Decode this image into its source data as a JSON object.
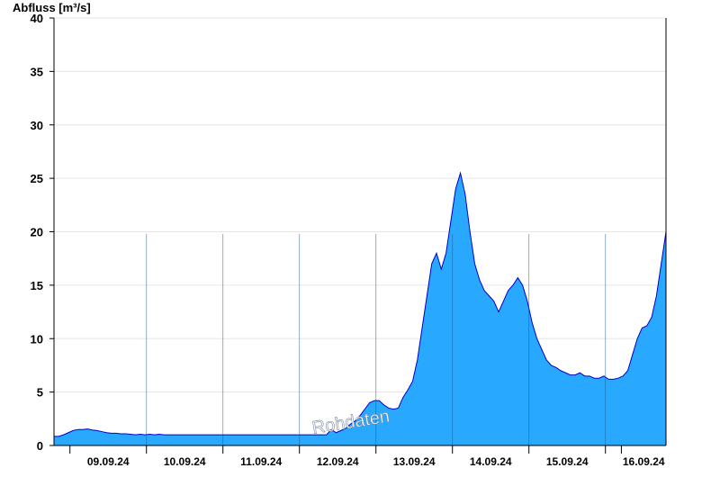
{
  "chart_data": {
    "type": "area",
    "title": "",
    "ylabel": "Abfluss [m³/s]",
    "xlabel": "",
    "ylim": [
      0,
      40
    ],
    "xlim": [
      "08.09.24 19:00",
      "16.09.24 19:00"
    ],
    "yticks": [
      0,
      5,
      10,
      15,
      20,
      25,
      30,
      35,
      40
    ],
    "xticks": [
      "09.09.24",
      "10.09.24",
      "11.09.24",
      "12.09.24",
      "13.09.24",
      "14.09.24",
      "15.09.24",
      "16.09.24"
    ],
    "watermark": "Rohdaten",
    "grid": "horizontal",
    "fill_color": "#29a8ff",
    "line_color": "#0000cc",
    "series": [
      {
        "x": [
          0,
          6,
          12,
          18,
          24,
          30,
          36,
          42,
          48,
          54,
          60,
          66,
          72,
          78,
          84,
          90,
          96,
          102,
          108,
          114,
          120,
          126,
          132,
          138,
          144,
          150,
          156,
          162,
          168,
          174,
          180,
          186,
          192,
          198,
          204,
          210,
          216,
          222,
          228,
          234,
          240,
          246,
          252,
          258,
          264,
          270,
          276,
          282,
          288,
          294,
          300,
          306,
          312,
          318,
          324,
          330,
          336,
          342,
          348,
          354,
          360,
          366,
          372,
          378,
          384,
          390,
          396,
          402,
          408,
          414,
          420,
          426,
          432,
          438,
          444,
          450,
          456,
          462,
          468,
          474,
          480,
          486,
          492,
          498,
          504,
          510,
          516,
          522,
          528,
          534,
          540,
          546,
          552,
          558,
          564,
          570,
          576,
          582,
          588,
          594,
          600,
          606,
          612,
          618,
          624,
          630,
          636,
          642,
          648,
          654,
          660,
          666,
          672,
          678,
          684,
          690,
          696,
          702,
          708,
          714,
          720,
          726,
          732,
          738,
          744,
          750,
          756,
          762,
          768
        ],
        "values": [
          0.85,
          0.85,
          1.0,
          1.2,
          1.4,
          1.5,
          1.5,
          1.55,
          1.45,
          1.4,
          1.3,
          1.2,
          1.15,
          1.15,
          1.1,
          1.1,
          1.05,
          1.0,
          1.05,
          1.0,
          1.05,
          1.0,
          1.05,
          1.0,
          1.0,
          1.0,
          1.0,
          1.0,
          1.0,
          1.0,
          1.0,
          1.0,
          1.0,
          1.0,
          1.0,
          1.0,
          1.0,
          1.0,
          1.0,
          1.0,
          1.0,
          1.0,
          1.0,
          1.0,
          1.0,
          1.0,
          1.0,
          1.0,
          1.0,
          1.0,
          1.0,
          1.0,
          1.0,
          1.0,
          1.0,
          1.0,
          1.0,
          1.0,
          1.5,
          1.2,
          1.4,
          1.6,
          2.0,
          2.3,
          2.8,
          3.4,
          4.0,
          4.2,
          4.2,
          3.8,
          3.5,
          3.4,
          3.5,
          4.5,
          5.2,
          6.0,
          8.0,
          11.0,
          14.0,
          17.0,
          18.0,
          16.5,
          18.0,
          21.0,
          24.0,
          25.5,
          23.5,
          20.0,
          17.0,
          15.5,
          14.5,
          14.0,
          13.5,
          12.5,
          13.5,
          14.5,
          15.0,
          15.7,
          15.0,
          13.5,
          11.5,
          10.0,
          9.0,
          8.0,
          7.5,
          7.3,
          7.0,
          6.8,
          6.6,
          6.6,
          6.8,
          6.5,
          6.5,
          6.3,
          6.3,
          6.5,
          6.2,
          6.2,
          6.3,
          6.5,
          7.0,
          8.5,
          10.0,
          11.0,
          11.2,
          12.0,
          14.0,
          17.0,
          20.0
        ]
      }
    ]
  }
}
